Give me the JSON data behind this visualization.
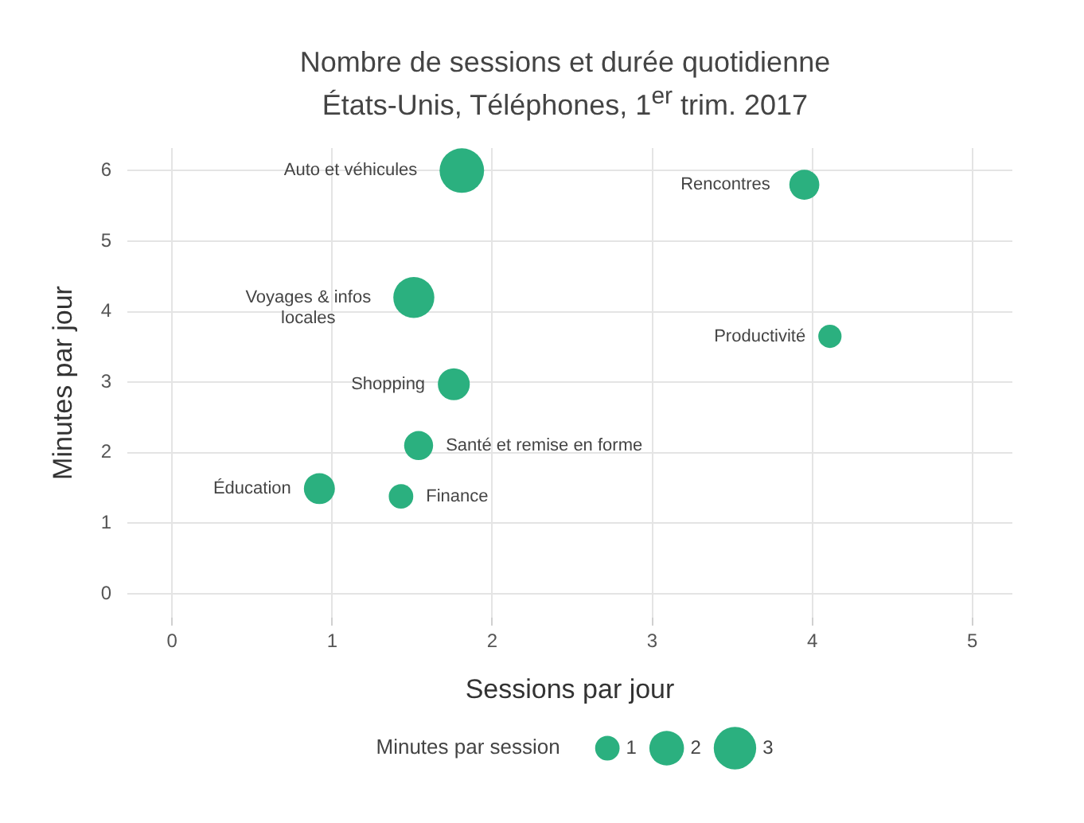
{
  "chart_data": {
    "type": "bubble",
    "title": "Nombre de sessions et durée quotidienne",
    "subtitle": "États-Unis, Téléphones, 1$^{er}$ trim. 2017",
    "xlabel": "Sessions par jour",
    "ylabel": "Minutes par jour",
    "legend_title": "Minutes par session",
    "size_legend": [
      1,
      2,
      3
    ],
    "grid": true,
    "xlim": [
      -0.28,
      5.25
    ],
    "ylim": [
      -0.34,
      6.32
    ],
    "xticks": [
      0,
      1,
      2,
      3,
      4,
      5
    ],
    "yticks": [
      0,
      1,
      2,
      3,
      4,
      5,
      6
    ],
    "series": [
      {
        "name": "Auto et véhicules",
        "color": "#2bb07f",
        "x": [
          1.81
        ],
        "values": [
          6.0
        ],
        "sizes": [
          3.3
        ]
      },
      {
        "name": "Rencontres",
        "color": "#2bb07f",
        "x": [
          3.95
        ],
        "values": [
          5.8
        ],
        "sizes": [
          1.5
        ]
      },
      {
        "name": "Voyages & infos locales",
        "color": "#2bb07f",
        "x": [
          1.51
        ],
        "values": [
          4.2
        ],
        "sizes": [
          2.8
        ]
      },
      {
        "name": "Productivité",
        "color": "#2bb07f",
        "x": [
          4.11
        ],
        "values": [
          3.65
        ],
        "sizes": [
          0.9
        ]
      },
      {
        "name": "Shopping",
        "color": "#2bb07f",
        "x": [
          1.76
        ],
        "values": [
          2.97
        ],
        "sizes": [
          1.7
        ]
      },
      {
        "name": "Santé et remise en forme",
        "color": "#2bb07f",
        "x": [
          1.54
        ],
        "values": [
          2.1
        ],
        "sizes": [
          1.4
        ]
      },
      {
        "name": "Éducation",
        "color": "#2bb07f",
        "x": [
          0.92
        ],
        "values": [
          1.49
        ],
        "sizes": [
          1.6
        ]
      },
      {
        "name": "Finance",
        "color": "#2bb07f",
        "x": [
          1.43
        ],
        "values": [
          1.38
        ],
        "sizes": [
          1.0
        ]
      }
    ]
  }
}
